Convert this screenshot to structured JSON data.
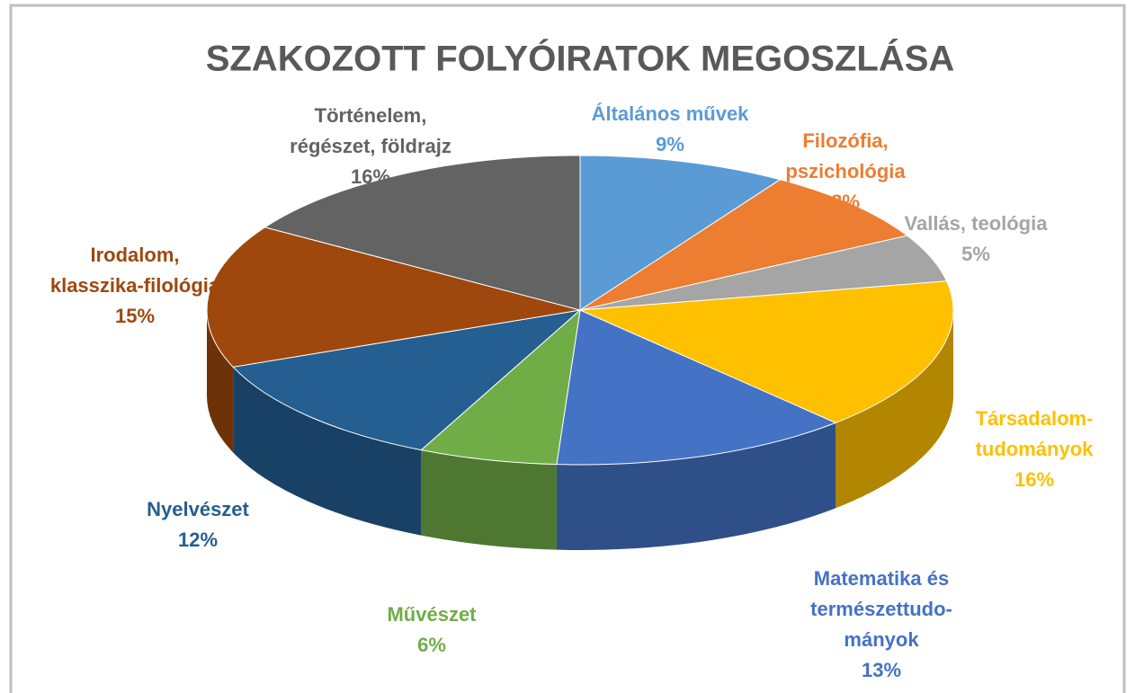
{
  "chart_data": {
    "type": "pie",
    "title": "SZAKOZOTT FOLYÓIRATOK MEGOSZLÁSA",
    "categories": [
      "Általános művek",
      "Filozófia,\npszichológia",
      "Vallás, teológia",
      "Társadalom-\ntudományok",
      "Matematika és\ntermészettudo-\nmányok",
      "Művészet",
      "Nyelvészet",
      "Irodalom,\nklasszika-filológia",
      "Történelem,\nrégészet, földrajz"
    ],
    "values": [
      9,
      8,
      5,
      16,
      13,
      6,
      12,
      15,
      16
    ],
    "value_labels": [
      "9%",
      "8%",
      "5%",
      "16%",
      "13%",
      "6%",
      "12%",
      "15%",
      "16%"
    ],
    "colors": [
      "#5b9bd5",
      "#ed7d31",
      "#a5a5a5",
      "#ffc000",
      "#4472c4",
      "#70ad47",
      "#255e91",
      "#9e480e",
      "#636363"
    ]
  }
}
